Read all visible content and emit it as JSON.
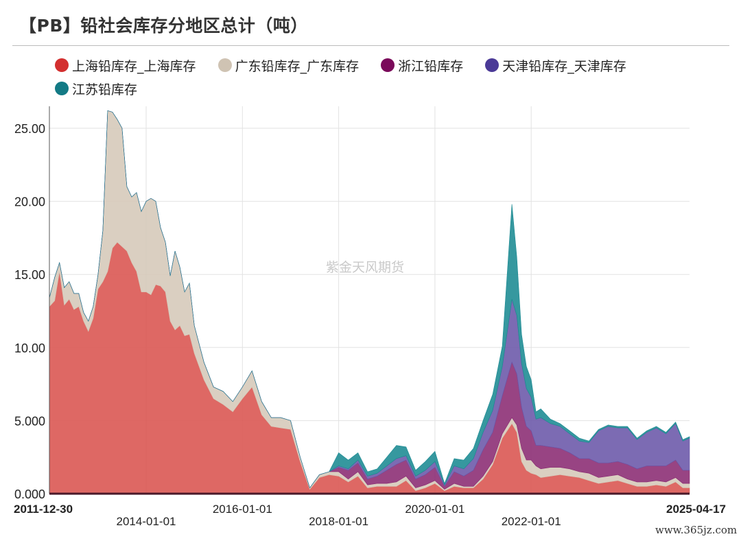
{
  "title": "【PB】铅社会库存分地区总计（吨）",
  "watermark": "紫金天风期货",
  "footer_mark": "www.365jz.com",
  "chart_data": {
    "type": "area",
    "stacked": true,
    "y_ticks": [
      "0.000",
      "5.000",
      "10.00",
      "15.00",
      "20.00",
      "25.00"
    ],
    "ylim": [
      0,
      26.5
    ],
    "x_range": [
      2011.99,
      2025.29
    ],
    "x_ticks": [
      {
        "label": "2011-12-30",
        "x": 2011.99,
        "row": 1,
        "bold": true
      },
      {
        "label": "2014-01-01",
        "x": 2014.0,
        "row": 2,
        "bold": false
      },
      {
        "label": "2016-01-01",
        "x": 2016.0,
        "row": 1,
        "bold": false
      },
      {
        "label": "2018-01-01",
        "x": 2018.0,
        "row": 2,
        "bold": false
      },
      {
        "label": "2020-01-01",
        "x": 2020.0,
        "row": 1,
        "bold": false
      },
      {
        "label": "2022-01-01",
        "x": 2022.0,
        "row": 2,
        "bold": false
      },
      {
        "label": "2025-04-17",
        "x": 2025.29,
        "row": 1,
        "bold": true
      }
    ],
    "legend_position": "top",
    "x": [
      2011.99,
      2012.1,
      2012.2,
      2012.3,
      2012.4,
      2012.5,
      2012.6,
      2012.7,
      2012.8,
      2012.9,
      2013.0,
      2013.1,
      2013.2,
      2013.3,
      2013.4,
      2013.5,
      2013.6,
      2013.7,
      2013.8,
      2013.9,
      2014.0,
      2014.1,
      2014.2,
      2014.3,
      2014.4,
      2014.5,
      2014.6,
      2014.7,
      2014.8,
      2014.9,
      2015.0,
      2015.2,
      2015.4,
      2015.6,
      2015.8,
      2016.0,
      2016.2,
      2016.4,
      2016.6,
      2016.8,
      2017.0,
      2017.2,
      2017.4,
      2017.6,
      2017.8,
      2018.0,
      2018.2,
      2018.4,
      2018.6,
      2018.8,
      2019.0,
      2019.2,
      2019.4,
      2019.6,
      2019.8,
      2020.0,
      2020.2,
      2020.4,
      2020.6,
      2020.8,
      2021.0,
      2021.2,
      2021.4,
      2021.6,
      2021.7,
      2021.8,
      2021.9,
      2022.0,
      2022.1,
      2022.2,
      2022.4,
      2022.6,
      2022.8,
      2023.0,
      2023.2,
      2023.4,
      2023.6,
      2023.8,
      2024.0,
      2024.2,
      2024.4,
      2024.6,
      2024.8,
      2025.0,
      2025.15,
      2025.29
    ],
    "series": [
      {
        "name": "上海铅库存_上海库存",
        "color": "#d9534f",
        "values": [
          12.8,
          13.2,
          15.2,
          12.9,
          13.3,
          12.6,
          12.8,
          11.8,
          11.1,
          12.0,
          14.0,
          14.5,
          15.2,
          16.8,
          17.2,
          16.9,
          16.6,
          15.8,
          15.2,
          13.8,
          13.8,
          13.6,
          14.3,
          14.2,
          13.8,
          11.8,
          11.2,
          11.5,
          10.8,
          10.9,
          9.6,
          7.8,
          6.5,
          6.1,
          5.6,
          6.5,
          7.3,
          5.4,
          4.6,
          4.5,
          4.4,
          2.2,
          0.3,
          1.1,
          1.3,
          1.2,
          0.8,
          1.2,
          0.4,
          0.5,
          0.5,
          0.5,
          0.9,
          0.2,
          0.4,
          0.7,
          0.2,
          0.5,
          0.4,
          0.4,
          1.0,
          2.0,
          3.8,
          4.8,
          4.2,
          2.2,
          1.6,
          1.4,
          1.3,
          1.1,
          1.2,
          1.3,
          1.2,
          1.1,
          0.9,
          0.7,
          0.8,
          0.9,
          0.7,
          0.5,
          0.5,
          0.6,
          0.5,
          0.8,
          0.4,
          0.4
        ]
      },
      {
        "name": "广东铅库存_广东库存",
        "color": "#d5c8b8",
        "values": [
          0.6,
          1.6,
          0.6,
          1.2,
          1.2,
          1.1,
          0.9,
          0.6,
          0.7,
          0.8,
          1.0,
          3.5,
          11.0,
          9.3,
          8.4,
          8.1,
          4.4,
          4.5,
          5.4,
          5.5,
          6.2,
          6.6,
          5.7,
          4.0,
          3.4,
          3.1,
          5.4,
          4.0,
          3.0,
          3.5,
          1.9,
          1.2,
          0.8,
          0.9,
          0.7,
          0.8,
          1.1,
          0.9,
          0.6,
          0.7,
          0.6,
          0.3,
          0.1,
          0.2,
          0.2,
          0.3,
          0.2,
          0.3,
          0.2,
          0.2,
          0.2,
          0.3,
          0.3,
          0.2,
          0.2,
          0.2,
          0.1,
          0.2,
          0.1,
          0.1,
          0.2,
          0.2,
          0.3,
          0.4,
          0.5,
          0.9,
          0.7,
          0.9,
          0.6,
          0.6,
          0.6,
          0.5,
          0.5,
          0.4,
          0.5,
          0.4,
          0.4,
          0.4,
          0.3,
          0.3,
          0.3,
          0.3,
          0.3,
          0.3,
          0.3,
          0.3
        ]
      },
      {
        "name": "浙江铅库存",
        "color": "#8a2a72",
        "values": [
          0,
          0,
          0,
          0,
          0,
          0,
          0,
          0,
          0,
          0,
          0,
          0,
          0,
          0,
          0,
          0,
          0,
          0,
          0,
          0,
          0,
          0,
          0,
          0,
          0,
          0,
          0,
          0,
          0,
          0,
          0,
          0,
          0,
          0,
          0,
          0,
          0,
          0,
          0,
          0,
          0,
          0,
          0,
          0,
          0,
          0.3,
          0.6,
          0.6,
          0.4,
          0.5,
          0.9,
          1.2,
          1.1,
          0.6,
          0.7,
          0.9,
          0.2,
          0.8,
          0.7,
          1.1,
          1.8,
          2.0,
          2.6,
          3.8,
          3.5,
          2.8,
          2.3,
          2.0,
          1.4,
          1.6,
          1.4,
          1.3,
          1.1,
          0.9,
          1.0,
          1.0,
          0.9,
          0.9,
          1.0,
          0.9,
          1.1,
          1.0,
          1.1,
          1.2,
          0.9,
          0.9
        ]
      },
      {
        "name": "天津铅库存_天津库存",
        "color": "#6a57a8",
        "values": [
          0,
          0,
          0,
          0,
          0,
          0,
          0,
          0,
          0,
          0,
          0,
          0,
          0,
          0,
          0,
          0,
          0,
          0,
          0,
          0,
          0,
          0,
          0,
          0,
          0,
          0,
          0,
          0,
          0,
          0,
          0,
          0,
          0,
          0,
          0,
          0,
          0,
          0,
          0,
          0,
          0,
          0,
          0,
          0,
          0,
          0.1,
          0.1,
          0.2,
          0.2,
          0.2,
          0.3,
          0.4,
          0.3,
          0.2,
          0.3,
          0.4,
          0.1,
          0.4,
          0.5,
          0.8,
          1.2,
          1.5,
          2.0,
          4.3,
          4.0,
          3.0,
          2.6,
          2.3,
          1.8,
          1.9,
          1.6,
          1.5,
          1.3,
          1.2,
          1.1,
          2.2,
          2.5,
          2.3,
          2.5,
          2.0,
          2.3,
          2.6,
          2.2,
          2.5,
          2.0,
          2.2
        ]
      },
      {
        "name": "江苏铅库存",
        "color": "#1a8a92",
        "values": [
          0,
          0,
          0,
          0,
          0,
          0,
          0,
          0,
          0,
          0,
          0,
          0,
          0,
          0,
          0,
          0,
          0,
          0,
          0,
          0,
          0,
          0,
          0,
          0,
          0,
          0,
          0,
          0,
          0,
          0,
          0,
          0,
          0,
          0,
          0,
          0,
          0,
          0,
          0,
          0,
          0,
          0,
          0,
          0,
          0,
          0.9,
          0.6,
          0.5,
          0.3,
          0.3,
          0.6,
          0.9,
          0.6,
          0.4,
          0.6,
          0.7,
          0.1,
          0.5,
          0.6,
          0.7,
          0.8,
          1.1,
          1.4,
          6.5,
          4.0,
          2.0,
          1.5,
          1.2,
          0.5,
          0.6,
          0.3,
          0.2,
          0.2,
          0.2,
          0.1,
          0.1,
          0.1,
          0.1,
          0.1,
          0.1,
          0.1,
          0.1,
          0.1,
          0.1,
          0.1,
          0.1
        ]
      }
    ]
  }
}
